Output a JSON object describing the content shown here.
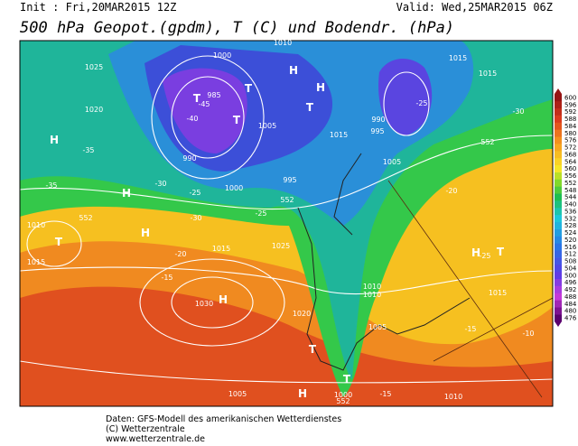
{
  "header": {
    "init": "Init : Fri,20MAR2015 12Z",
    "valid": "Valid: Wed,25MAR2015 06Z",
    "title": "500 hPa Geopot.(gpdm), T (C) und Bodendr. (hPa)"
  },
  "map": {
    "labels": [
      "1010",
      "1025",
      "1020",
      "1000",
      "985",
      "990",
      "995",
      "1000",
      "1005",
      "990",
      "995",
      "1005",
      "1015",
      "1015",
      "1015",
      "1010",
      "1015",
      "1015",
      "1025",
      "1030",
      "1020",
      "1010",
      "1010",
      "1005",
      "1000",
      "1005",
      "1010",
      "1015",
      "H",
      "H",
      "H",
      "H",
      "H",
      "H",
      "H",
      "H",
      "T",
      "T",
      "T",
      "T",
      "T",
      "T",
      "T",
      "T",
      "-40",
      "-45",
      "-35",
      "-35",
      "-30",
      "-30",
      "-25",
      "-25",
      "-20",
      "-15",
      "-20",
      "-25",
      "-30",
      "-25",
      "-15",
      "-10",
      "-15",
      "552",
      "552",
      "552",
      "552"
    ]
  },
  "colorbar": {
    "values": [
      476,
      480,
      484,
      488,
      492,
      496,
      500,
      504,
      508,
      512,
      516,
      520,
      524,
      528,
      532,
      536,
      540,
      544,
      548,
      552,
      556,
      560,
      564,
      568,
      572,
      576,
      580,
      584,
      588,
      592,
      596,
      600
    ]
  },
  "footer": {
    "lines": [
      "Daten: GFS-Modell des amerikanischen Wetterdienstes",
      "(C) Wetterzentrale",
      "www.wetterzentrale.de"
    ]
  }
}
